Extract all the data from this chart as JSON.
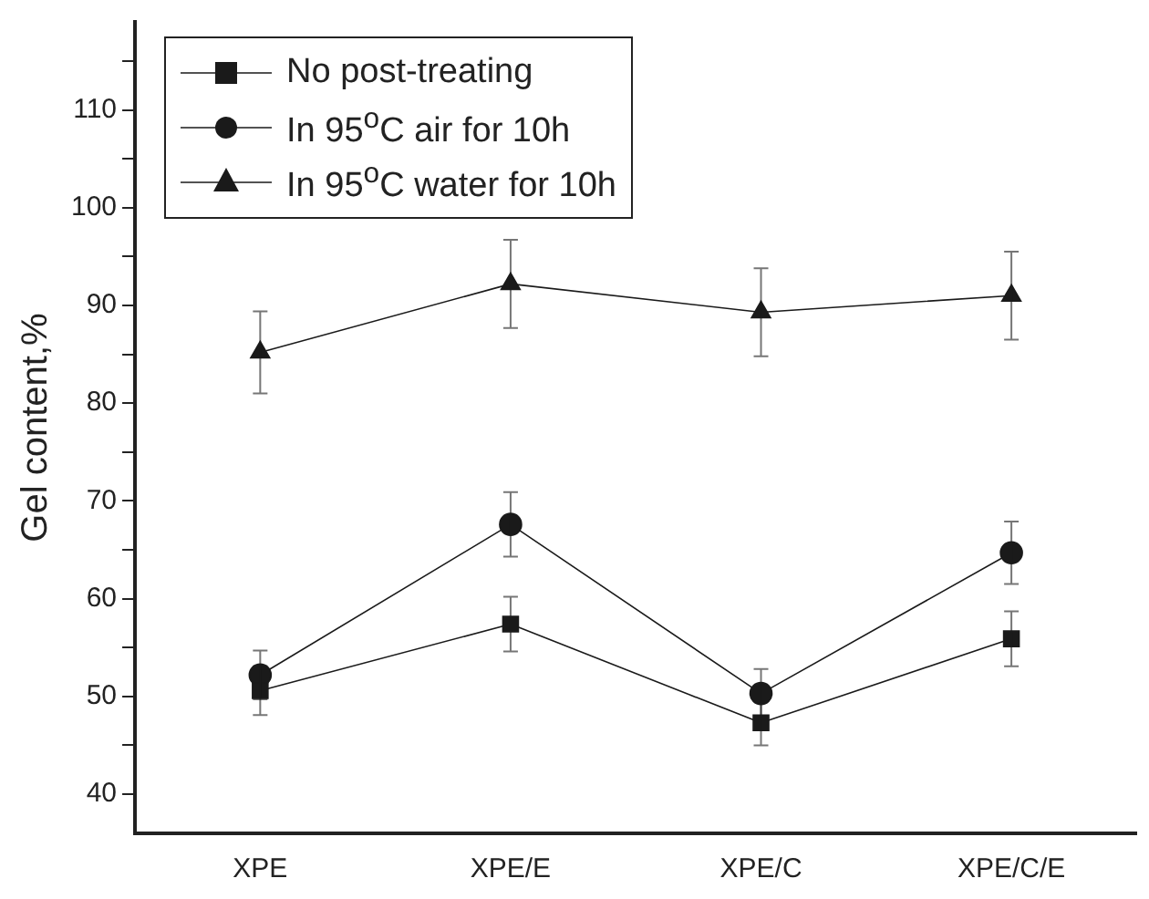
{
  "chart_data": {
    "type": "line",
    "ylabel": "Gel content,%",
    "categories": [
      "XPE",
      "XPE/E",
      "XPE/C",
      "XPE/C/E"
    ],
    "series": [
      {
        "name": "No post-treating",
        "color": "#1a1a1a",
        "marker": "square",
        "values": [
          50.6,
          57.4,
          47.3,
          55.9
        ],
        "errors": [
          2.5,
          2.8,
          2.3,
          2.8
        ]
      },
      {
        "name": "In 95$^{o}$C air for 10h",
        "color": "#1a1a1a",
        "marker": "circle",
        "values": [
          52.2,
          67.6,
          50.3,
          64.7
        ],
        "errors": [
          2.5,
          3.3,
          2.5,
          3.2
        ]
      },
      {
        "name": "In 95$^{o}$C water for 10h",
        "color": "#1a1a1a",
        "marker": "triangle",
        "values": [
          85.2,
          92.2,
          89.3,
          91.0
        ],
        "errors": [
          4.2,
          4.5,
          4.5,
          4.5
        ]
      }
    ],
    "ylim": [
      36,
      119
    ],
    "yticks": [
      40,
      {
        "value": 45,
        "label": null
      },
      50,
      {
        "value": 55,
        "label": null
      },
      60,
      {
        "value": 65,
        "label": null
      },
      70,
      {
        "value": 75,
        "label": null
      },
      80,
      {
        "value": 85,
        "label": null
      },
      90,
      {
        "value": 95,
        "label": null
      },
      100,
      {
        "value": 105,
        "label": null
      },
      110,
      {
        "value": 115,
        "label": null
      }
    ],
    "grid": false,
    "legend": "top left",
    "line_style": "solid"
  }
}
